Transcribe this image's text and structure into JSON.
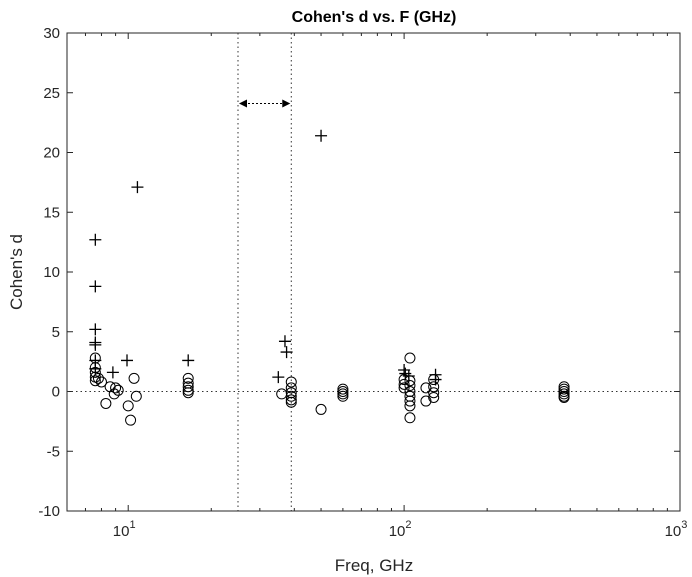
{
  "chart_data": {
    "type": "scatter",
    "title": "Cohen's d vs. F (GHz)",
    "xlabel": "Freq, GHz",
    "ylabel": "Cohen's d",
    "xscale": "log",
    "xlim": [
      6,
      1000
    ],
    "ylim": [
      -10,
      30
    ],
    "xticks": [
      10,
      100,
      1000
    ],
    "xtick_labels": [
      {
        "base": "10",
        "exp": "1"
      },
      {
        "base": "10",
        "exp": "2"
      },
      {
        "base": "10",
        "exp": "3"
      }
    ],
    "yticks": [
      -10,
      -5,
      0,
      5,
      10,
      15,
      20,
      25,
      30
    ],
    "grid": false,
    "reference_lines": {
      "horizontal_y": 0,
      "vertical_x": [
        25,
        39
      ],
      "arrow": {
        "x_from": 25,
        "x_to": 39,
        "y": 24.1
      }
    },
    "series": [
      {
        "marker": "plus",
        "x": [
          7.6,
          7.6,
          7.6,
          7.6,
          7.6,
          7.6,
          7.6,
          8.8,
          9.9,
          10.8,
          16.5,
          35,
          37,
          37.5,
          50,
          100,
          101,
          104,
          130,
          130
        ],
        "y": [
          12.7,
          8.8,
          5.2,
          4.1,
          3.9,
          2.6,
          1.9,
          1.6,
          2.6,
          17.1,
          2.6,
          1.2,
          4.2,
          3.3,
          21.4,
          1.8,
          1.5,
          1.3,
          1.4,
          1.0
        ]
      },
      {
        "marker": "circle",
        "x": [
          7.6,
          7.6,
          7.6,
          7.6,
          7.6,
          7.8,
          8.0,
          8.3,
          8.6,
          8.9,
          9.0,
          9.2,
          10.0,
          10.2,
          10.5,
          10.7,
          16.5,
          16.5,
          16.5,
          16.5,
          16.5,
          36,
          39,
          39,
          39,
          39,
          39,
          39,
          50,
          60,
          60,
          60,
          60,
          100,
          100,
          100,
          105,
          105,
          105,
          105,
          105,
          105,
          105,
          105,
          120,
          120,
          128,
          128,
          128,
          128,
          380,
          380,
          380,
          380,
          380,
          380
        ],
        "y": [
          2.8,
          2.0,
          1.6,
          1.2,
          0.9,
          1.1,
          0.8,
          -1.0,
          0.4,
          -0.2,
          0.3,
          0.1,
          -1.2,
          -2.4,
          1.1,
          -0.4,
          1.1,
          0.7,
          0.4,
          0.1,
          -0.1,
          -0.2,
          0.8,
          0.3,
          -0.1,
          -0.4,
          -0.7,
          -0.9,
          -1.5,
          0.2,
          0.0,
          -0.2,
          -0.4,
          1.0,
          0.6,
          0.3,
          2.8,
          0.9,
          0.5,
          0.0,
          -0.4,
          -0.8,
          -1.2,
          -2.2,
          0.3,
          -0.8,
          1.0,
          0.4,
          -0.1,
          -0.5,
          0.4,
          0.2,
          0.0,
          -0.2,
          -0.4,
          -0.5
        ]
      }
    ]
  }
}
